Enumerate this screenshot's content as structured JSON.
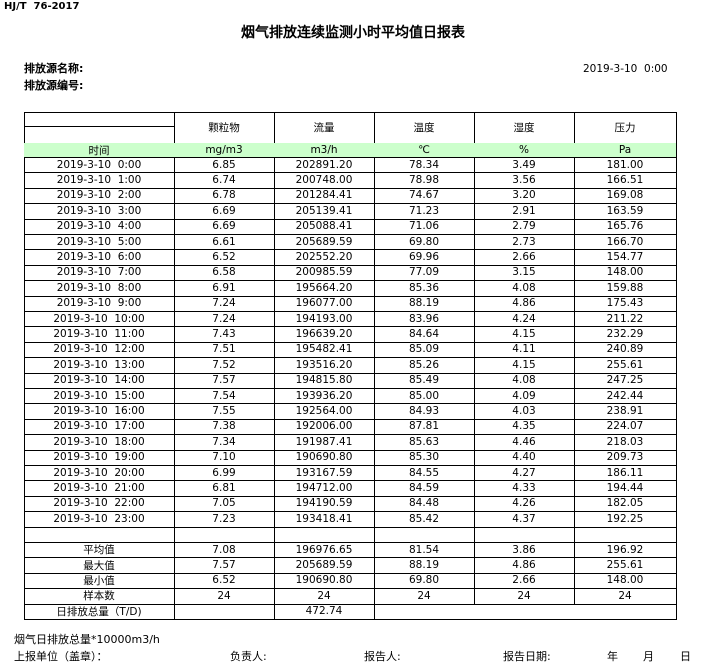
{
  "header": {
    "standard": "HJ/T  76-2017",
    "title": "烟气排放连续监测小时平均值日报表",
    "source_name_label": "排放源名称:",
    "source_id_label": "排放源编号:",
    "date": "2019-3-10  0:00"
  },
  "table": {
    "columns": [
      "颗粒物",
      "流量",
      "温度",
      "湿度",
      "压力"
    ],
    "time_label": "时间",
    "units": [
      "mg/m3",
      "m3/h",
      "℃",
      "%",
      "Pa"
    ],
    "rows": [
      [
        "2019-3-10  0:00",
        "6.85",
        "202891.20",
        "78.34",
        "3.49",
        "181.00"
      ],
      [
        "2019-3-10  1:00",
        "6.74",
        "200748.00",
        "78.98",
        "3.56",
        "166.51"
      ],
      [
        "2019-3-10  2:00",
        "6.78",
        "201284.41",
        "74.67",
        "3.20",
        "169.08"
      ],
      [
        "2019-3-10  3:00",
        "6.69",
        "205139.41",
        "71.23",
        "2.91",
        "163.59"
      ],
      [
        "2019-3-10  4:00",
        "6.69",
        "205088.41",
        "71.06",
        "2.79",
        "165.76"
      ],
      [
        "2019-3-10  5:00",
        "6.61",
        "205689.59",
        "69.80",
        "2.73",
        "166.70"
      ],
      [
        "2019-3-10  6:00",
        "6.52",
        "202552.20",
        "69.96",
        "2.66",
        "154.77"
      ],
      [
        "2019-3-10  7:00",
        "6.58",
        "200985.59",
        "77.09",
        "3.15",
        "148.00"
      ],
      [
        "2019-3-10  8:00",
        "6.91",
        "195664.20",
        "85.36",
        "4.08",
        "159.88"
      ],
      [
        "2019-3-10  9:00",
        "7.24",
        "196077.00",
        "88.19",
        "4.86",
        "175.43"
      ],
      [
        "2019-3-10  10:00",
        "7.24",
        "194193.00",
        "83.96",
        "4.24",
        "211.22"
      ],
      [
        "2019-3-10  11:00",
        "7.43",
        "196639.20",
        "84.64",
        "4.15",
        "232.29"
      ],
      [
        "2019-3-10  12:00",
        "7.51",
        "195482.41",
        "85.09",
        "4.11",
        "240.89"
      ],
      [
        "2019-3-10  13:00",
        "7.52",
        "193516.20",
        "85.26",
        "4.15",
        "255.61"
      ],
      [
        "2019-3-10  14:00",
        "7.57",
        "194815.80",
        "85.49",
        "4.08",
        "247.25"
      ],
      [
        "2019-3-10  15:00",
        "7.54",
        "193936.20",
        "85.00",
        "4.09",
        "242.44"
      ],
      [
        "2019-3-10  16:00",
        "7.55",
        "192564.00",
        "84.93",
        "4.03",
        "238.91"
      ],
      [
        "2019-3-10  17:00",
        "7.38",
        "192006.00",
        "87.81",
        "4.35",
        "224.07"
      ],
      [
        "2019-3-10  18:00",
        "7.34",
        "191987.41",
        "85.63",
        "4.46",
        "218.03"
      ],
      [
        "2019-3-10  19:00",
        "7.10",
        "190690.80",
        "85.30",
        "4.40",
        "209.73"
      ],
      [
        "2019-3-10  20:00",
        "6.99",
        "193167.59",
        "84.55",
        "4.27",
        "186.11"
      ],
      [
        "2019-3-10  21:00",
        "6.81",
        "194712.00",
        "84.59",
        "4.33",
        "194.44"
      ],
      [
        "2019-3-10  22:00",
        "7.05",
        "194190.59",
        "84.48",
        "4.26",
        "182.05"
      ],
      [
        "2019-3-10  23:00",
        "7.23",
        "193418.41",
        "85.42",
        "4.37",
        "192.25"
      ]
    ],
    "summary": [
      [
        "平均值",
        "7.08",
        "196976.65",
        "81.54",
        "3.86",
        "196.92"
      ],
      [
        "最大值",
        "7.57",
        "205689.59",
        "88.19",
        "4.86",
        "255.61"
      ],
      [
        "最小值",
        "6.52",
        "190690.80",
        "69.80",
        "2.66",
        "148.00"
      ],
      [
        "样本数",
        "24",
        "24",
        "24",
        "24",
        "24"
      ]
    ],
    "daily_total": {
      "label": "日排放总量（T/D)",
      "value": "472.74"
    }
  },
  "footer": {
    "note": "烟气日排放总量*10000m3/h",
    "unit_label": "上报单位（盖章）：",
    "owner_label": "负责人:",
    "reporter_label": "报告人:",
    "date_label": "报告日期:",
    "year": "年",
    "month": "月",
    "day": "日"
  }
}
